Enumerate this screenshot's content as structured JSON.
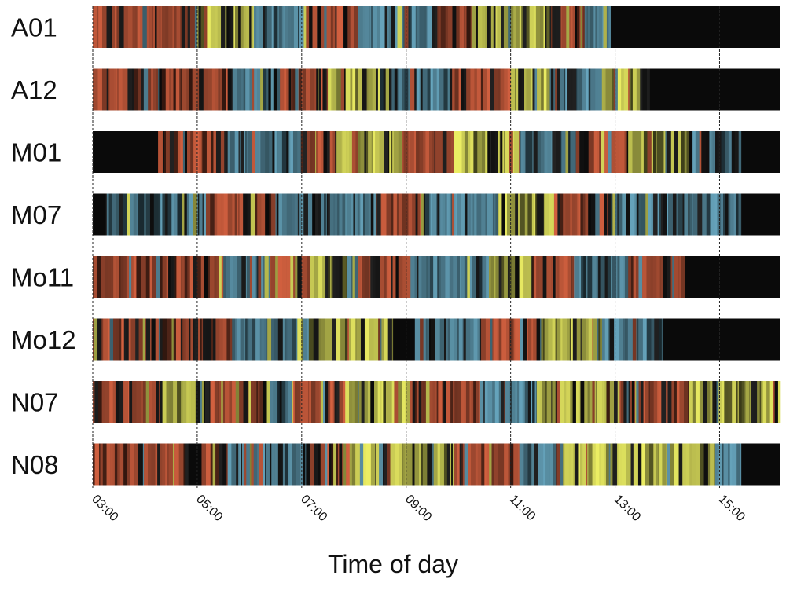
{
  "chart_data": {
    "type": "heatmap",
    "xlabel": "Time of day",
    "x_range": [
      "03:00",
      "16:10"
    ],
    "x_ticks": [
      "03:00",
      "05:00",
      "07:00",
      "09:00",
      "11:00",
      "13:00",
      "15:00"
    ],
    "gridlines": "dashed vertical at each tick",
    "legend": "none",
    "state_colors": {
      "red": "#c0583a",
      "blue": "#5e97ad",
      "yellow": "#d6d85a",
      "none": "#0a0a0a"
    },
    "rows": [
      {
        "label": "A01",
        "segments": [
          [
            "03:00",
            "05:00",
            "red"
          ],
          [
            "05:00",
            "06:05",
            "yellow"
          ],
          [
            "06:05",
            "07:05",
            "blue"
          ],
          [
            "07:05",
            "08:05",
            "red"
          ],
          [
            "08:05",
            "09:30",
            "blue"
          ],
          [
            "09:30",
            "10:15",
            "red"
          ],
          [
            "10:15",
            "11:45",
            "yellow"
          ],
          [
            "11:45",
            "12:25",
            "red"
          ],
          [
            "12:25",
            "12:55",
            "blue"
          ],
          [
            "12:55",
            "16:10",
            "none"
          ]
        ]
      },
      {
        "label": "A12",
        "segments": [
          [
            "03:00",
            "05:35",
            "red"
          ],
          [
            "05:35",
            "06:35",
            "blue"
          ],
          [
            "06:35",
            "07:30",
            "red"
          ],
          [
            "07:30",
            "08:30",
            "yellow"
          ],
          [
            "08:30",
            "09:50",
            "blue"
          ],
          [
            "09:50",
            "11:00",
            "red"
          ],
          [
            "11:00",
            "11:45",
            "yellow"
          ],
          [
            "11:45",
            "12:40",
            "blue"
          ],
          [
            "12:40",
            "13:40",
            "yellow"
          ],
          [
            "13:40",
            "16:10",
            "none"
          ]
        ]
      },
      {
        "label": "M01",
        "segments": [
          [
            "03:00",
            "04:15",
            "none"
          ],
          [
            "04:15",
            "05:35",
            "red"
          ],
          [
            "05:35",
            "06:55",
            "blue"
          ],
          [
            "06:55",
            "07:40",
            "red"
          ],
          [
            "07:40",
            "08:55",
            "yellow"
          ],
          [
            "08:55",
            "09:55",
            "red"
          ],
          [
            "09:55",
            "11:10",
            "yellow"
          ],
          [
            "11:10",
            "12:15",
            "blue"
          ],
          [
            "12:15",
            "13:15",
            "red"
          ],
          [
            "13:15",
            "14:25",
            "yellow"
          ],
          [
            "14:25",
            "15:25",
            "blue"
          ],
          [
            "15:25",
            "16:10",
            "none"
          ]
        ]
      },
      {
        "label": "M07",
        "segments": [
          [
            "03:00",
            "03:15",
            "none"
          ],
          [
            "03:15",
            "05:10",
            "blue"
          ],
          [
            "05:10",
            "06:25",
            "red"
          ],
          [
            "06:25",
            "08:25",
            "blue"
          ],
          [
            "08:25",
            "09:20",
            "red"
          ],
          [
            "09:20",
            "10:45",
            "blue"
          ],
          [
            "10:45",
            "11:50",
            "yellow"
          ],
          [
            "11:50",
            "12:55",
            "red"
          ],
          [
            "12:55",
            "15:25",
            "blue"
          ],
          [
            "15:25",
            "16:10",
            "none"
          ]
        ]
      },
      {
        "label": "Mo11",
        "segments": [
          [
            "03:00",
            "04:20",
            "red"
          ],
          [
            "04:20",
            "05:30",
            "red"
          ],
          [
            "05:30",
            "06:10",
            "blue"
          ],
          [
            "06:10",
            "07:10",
            "red"
          ],
          [
            "07:10",
            "08:05",
            "yellow"
          ],
          [
            "08:05",
            "09:05",
            "red"
          ],
          [
            "09:05",
            "10:35",
            "blue"
          ],
          [
            "10:35",
            "11:25",
            "yellow"
          ],
          [
            "11:25",
            "12:10",
            "red"
          ],
          [
            "12:10",
            "13:15",
            "blue"
          ],
          [
            "13:15",
            "14:20",
            "red"
          ],
          [
            "14:20",
            "16:10",
            "none"
          ]
        ]
      },
      {
        "label": "Mo12",
        "segments": [
          [
            "03:00",
            "05:40",
            "red"
          ],
          [
            "05:40",
            "06:55",
            "blue"
          ],
          [
            "06:55",
            "08:45",
            "yellow"
          ],
          [
            "08:45",
            "09:10",
            "none"
          ],
          [
            "09:10",
            "10:25",
            "blue"
          ],
          [
            "10:25",
            "11:35",
            "red"
          ],
          [
            "11:35",
            "12:45",
            "yellow"
          ],
          [
            "12:45",
            "13:55",
            "blue"
          ],
          [
            "13:55",
            "16:10",
            "none"
          ]
        ]
      },
      {
        "label": "N07",
        "segments": [
          [
            "03:00",
            "04:20",
            "red"
          ],
          [
            "04:20",
            "05:15",
            "yellow"
          ],
          [
            "05:15",
            "06:20",
            "red"
          ],
          [
            "06:20",
            "06:50",
            "blue"
          ],
          [
            "06:50",
            "07:50",
            "red"
          ],
          [
            "07:50",
            "09:10",
            "yellow"
          ],
          [
            "09:10",
            "10:25",
            "red"
          ],
          [
            "10:25",
            "11:30",
            "blue"
          ],
          [
            "11:30",
            "12:50",
            "yellow"
          ],
          [
            "12:50",
            "14:25",
            "red"
          ],
          [
            "14:25",
            "16:10",
            "yellow"
          ]
        ]
      },
      {
        "label": "N08",
        "segments": [
          [
            "03:00",
            "04:50",
            "red"
          ],
          [
            "04:50",
            "05:05",
            "none"
          ],
          [
            "05:05",
            "05:35",
            "red"
          ],
          [
            "05:35",
            "07:05",
            "blue"
          ],
          [
            "07:05",
            "07:55",
            "red"
          ],
          [
            "07:55",
            "09:55",
            "yellow"
          ],
          [
            "09:55",
            "11:10",
            "red"
          ],
          [
            "11:10",
            "12:00",
            "blue"
          ],
          [
            "12:00",
            "14:55",
            "yellow"
          ],
          [
            "14:55",
            "15:25",
            "blue"
          ],
          [
            "15:25",
            "16:10",
            "none"
          ]
        ]
      }
    ]
  }
}
